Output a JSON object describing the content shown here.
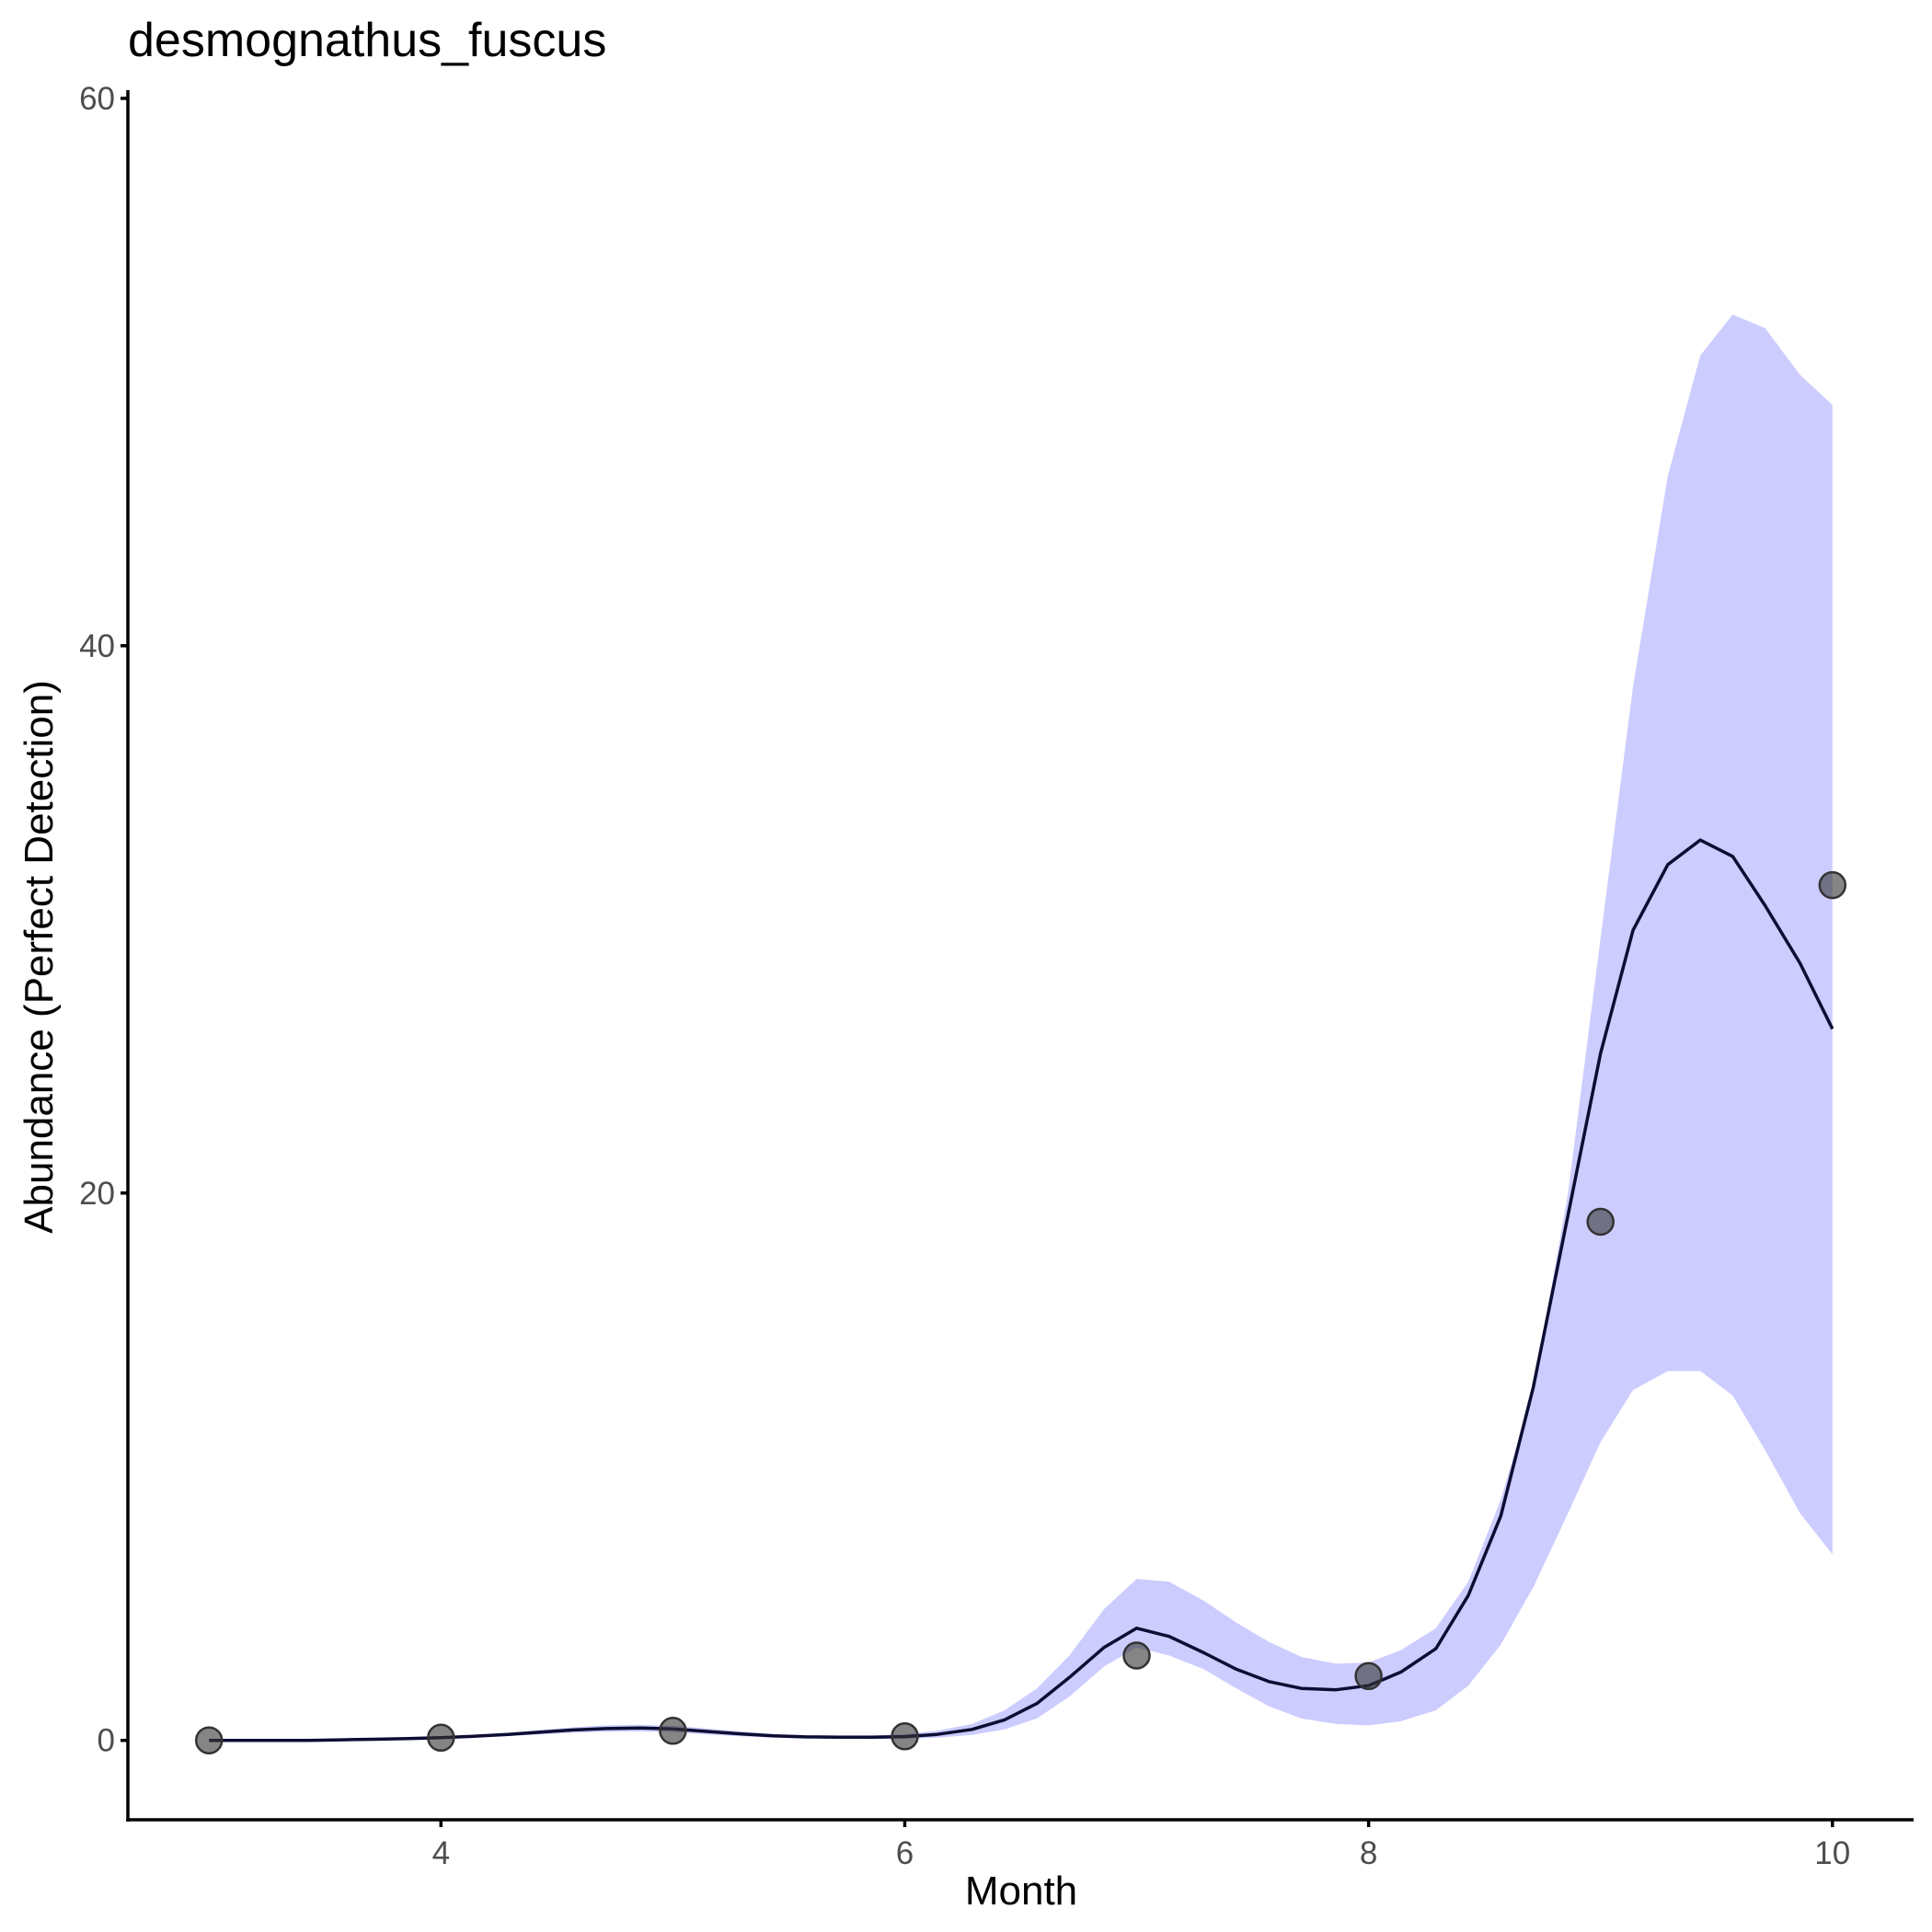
{
  "chart_data": {
    "type": "line",
    "title": "desmognathus_fuscus",
    "xlabel": "Month",
    "ylabel": "Abundance (Perfect Detection)",
    "xlim": [
      2.65,
      10.35
    ],
    "ylim": [
      -2.9,
      60.3
    ],
    "x_ticks": [
      4,
      6,
      8,
      10
    ],
    "y_ticks": [
      0,
      20,
      40,
      60
    ],
    "grid": false,
    "legend": "none",
    "colors": {
      "line": "#0d0d33",
      "ribbon": "#ccccff",
      "point_fill": "#33333399",
      "point_stroke": "#333333"
    },
    "observed_points": {
      "x": [
        3,
        4,
        5,
        6,
        7,
        8,
        9,
        10
      ],
      "y": [
        0.0,
        0.1,
        0.35,
        0.15,
        3.1,
        2.35,
        18.95,
        31.25
      ]
    },
    "fitted_line": {
      "x": [
        3.0,
        3.14,
        3.29,
        3.43,
        3.57,
        3.71,
        3.86,
        4.0,
        4.14,
        4.29,
        4.43,
        4.57,
        4.71,
        4.86,
        5.0,
        5.14,
        5.29,
        5.43,
        5.57,
        5.71,
        5.86,
        6.0,
        6.14,
        6.29,
        6.43,
        6.57,
        6.71,
        6.86,
        7.0,
        7.14,
        7.29,
        7.43,
        7.57,
        7.71,
        7.86,
        8.0,
        8.14,
        8.29,
        8.43,
        8.57,
        8.71,
        8.86,
        9.0,
        9.14,
        9.29,
        9.43,
        9.57,
        9.71,
        9.86,
        10.0
      ],
      "y": [
        0.0,
        0.0,
        0.0,
        0.0,
        0.02,
        0.04,
        0.07,
        0.1,
        0.15,
        0.22,
        0.3,
        0.38,
        0.43,
        0.45,
        0.42,
        0.33,
        0.24,
        0.17,
        0.13,
        0.12,
        0.12,
        0.14,
        0.22,
        0.4,
        0.75,
        1.35,
        2.3,
        3.4,
        4.1,
        3.8,
        3.2,
        2.6,
        2.15,
        1.9,
        1.85,
        2.0,
        2.5,
        3.35,
        5.3,
        8.2,
        12.9,
        19.2,
        25.1,
        29.6,
        32.0,
        32.9,
        32.3,
        30.5,
        28.4,
        26.0
      ]
    },
    "ribbon_95": {
      "x": [
        3.0,
        3.14,
        3.29,
        3.43,
        3.57,
        3.71,
        3.86,
        4.0,
        4.14,
        4.29,
        4.43,
        4.57,
        4.71,
        4.86,
        5.0,
        5.14,
        5.29,
        5.43,
        5.57,
        5.71,
        5.86,
        6.0,
        6.14,
        6.29,
        6.43,
        6.57,
        6.71,
        6.86,
        7.0,
        7.14,
        7.29,
        7.43,
        7.57,
        7.71,
        7.86,
        8.0,
        8.14,
        8.29,
        8.43,
        8.57,
        8.71,
        8.86,
        9.0,
        9.14,
        9.29,
        9.43,
        9.57,
        9.71,
        9.86,
        10.0
      ],
      "lower": [
        0.0,
        0.0,
        0.0,
        0.0,
        0.01,
        0.03,
        0.05,
        0.07,
        0.11,
        0.16,
        0.22,
        0.28,
        0.32,
        0.33,
        0.3,
        0.22,
        0.15,
        0.1,
        0.07,
        0.06,
        0.05,
        0.05,
        0.1,
        0.2,
        0.4,
        0.8,
        1.6,
        2.7,
        3.4,
        3.1,
        2.6,
        1.9,
        1.25,
        0.8,
        0.6,
        0.55,
        0.7,
        1.1,
        2.0,
        3.5,
        5.6,
        8.3,
        10.9,
        12.8,
        13.5,
        13.5,
        12.6,
        10.6,
        8.3,
        6.8
      ],
      "upper": [
        0.0,
        0.0,
        0.0,
        0.0,
        0.03,
        0.05,
        0.09,
        0.13,
        0.2,
        0.28,
        0.38,
        0.48,
        0.55,
        0.57,
        0.54,
        0.44,
        0.33,
        0.24,
        0.19,
        0.18,
        0.18,
        0.23,
        0.35,
        0.6,
        1.1,
        1.9,
        3.1,
        4.8,
        5.9,
        5.8,
        5.1,
        4.3,
        3.6,
        3.05,
        2.8,
        2.85,
        3.3,
        4.1,
        5.8,
        8.8,
        12.8,
        20.0,
        29.3,
        38.5,
        46.2,
        50.6,
        52.1,
        51.6,
        49.9,
        48.8
      ]
    }
  }
}
